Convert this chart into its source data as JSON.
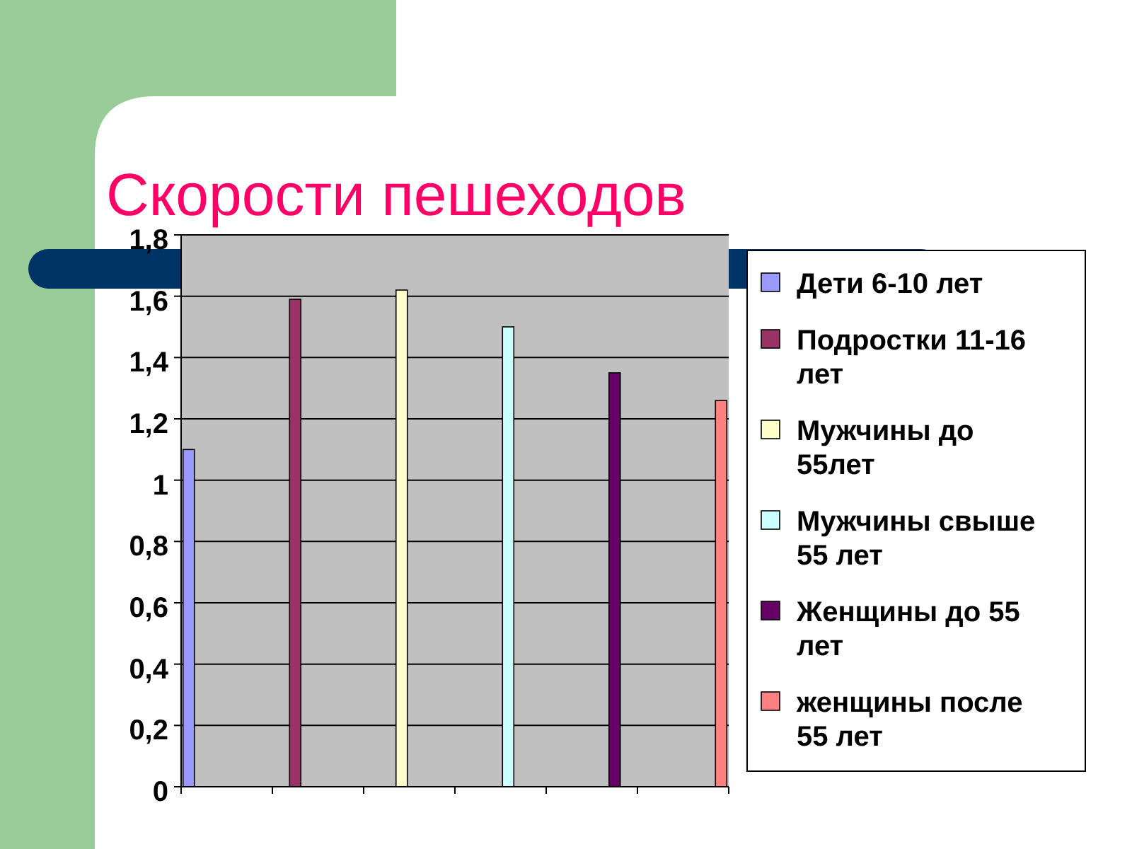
{
  "chart_data": {
    "type": "bar",
    "title": "Скорости пешеходов",
    "categories": [
      null,
      null,
      null,
      null,
      null,
      null
    ],
    "series": [
      {
        "name": "Дети 6-10 лет",
        "color": "#9999ff",
        "values": [
          1.1,
          null,
          null,
          null,
          null,
          null
        ]
      },
      {
        "name": "Подростки 11-16 лет",
        "color": "#993366",
        "values": [
          null,
          1.59,
          null,
          null,
          null,
          null
        ]
      },
      {
        "name": "Мужчины до 55лет",
        "color": "#ffffcc",
        "values": [
          null,
          null,
          1.62,
          null,
          null,
          null
        ]
      },
      {
        "name": "Мужчины свыше 55 лет",
        "color": "#ccffff",
        "values": [
          null,
          null,
          null,
          1.5,
          null,
          null
        ]
      },
      {
        "name": "Женщины до 55 лет",
        "color": "#660066",
        "values": [
          null,
          null,
          null,
          null,
          1.35,
          null
        ]
      },
      {
        "name": "женщины после 55 лет",
        "color": "#ff8080",
        "values": [
          null,
          null,
          null,
          null,
          null,
          1.26
        ]
      }
    ],
    "ylim": [
      0,
      1.8
    ],
    "yticks": [
      {
        "value": 0,
        "label": "0"
      },
      {
        "value": 0.2,
        "label": "0,2"
      },
      {
        "value": 0.4,
        "label": "0,4"
      },
      {
        "value": 0.6,
        "label": "0,6"
      },
      {
        "value": 0.8,
        "label": "0,8"
      },
      {
        "value": 1,
        "label": "1"
      },
      {
        "value": 1.2,
        "label": "1,2"
      },
      {
        "value": 1.4,
        "label": "1,4"
      },
      {
        "value": 1.6,
        "label": "1,6"
      },
      {
        "value": 1.8,
        "label": "1,8"
      }
    ],
    "grid": "y",
    "legend": "right"
  }
}
